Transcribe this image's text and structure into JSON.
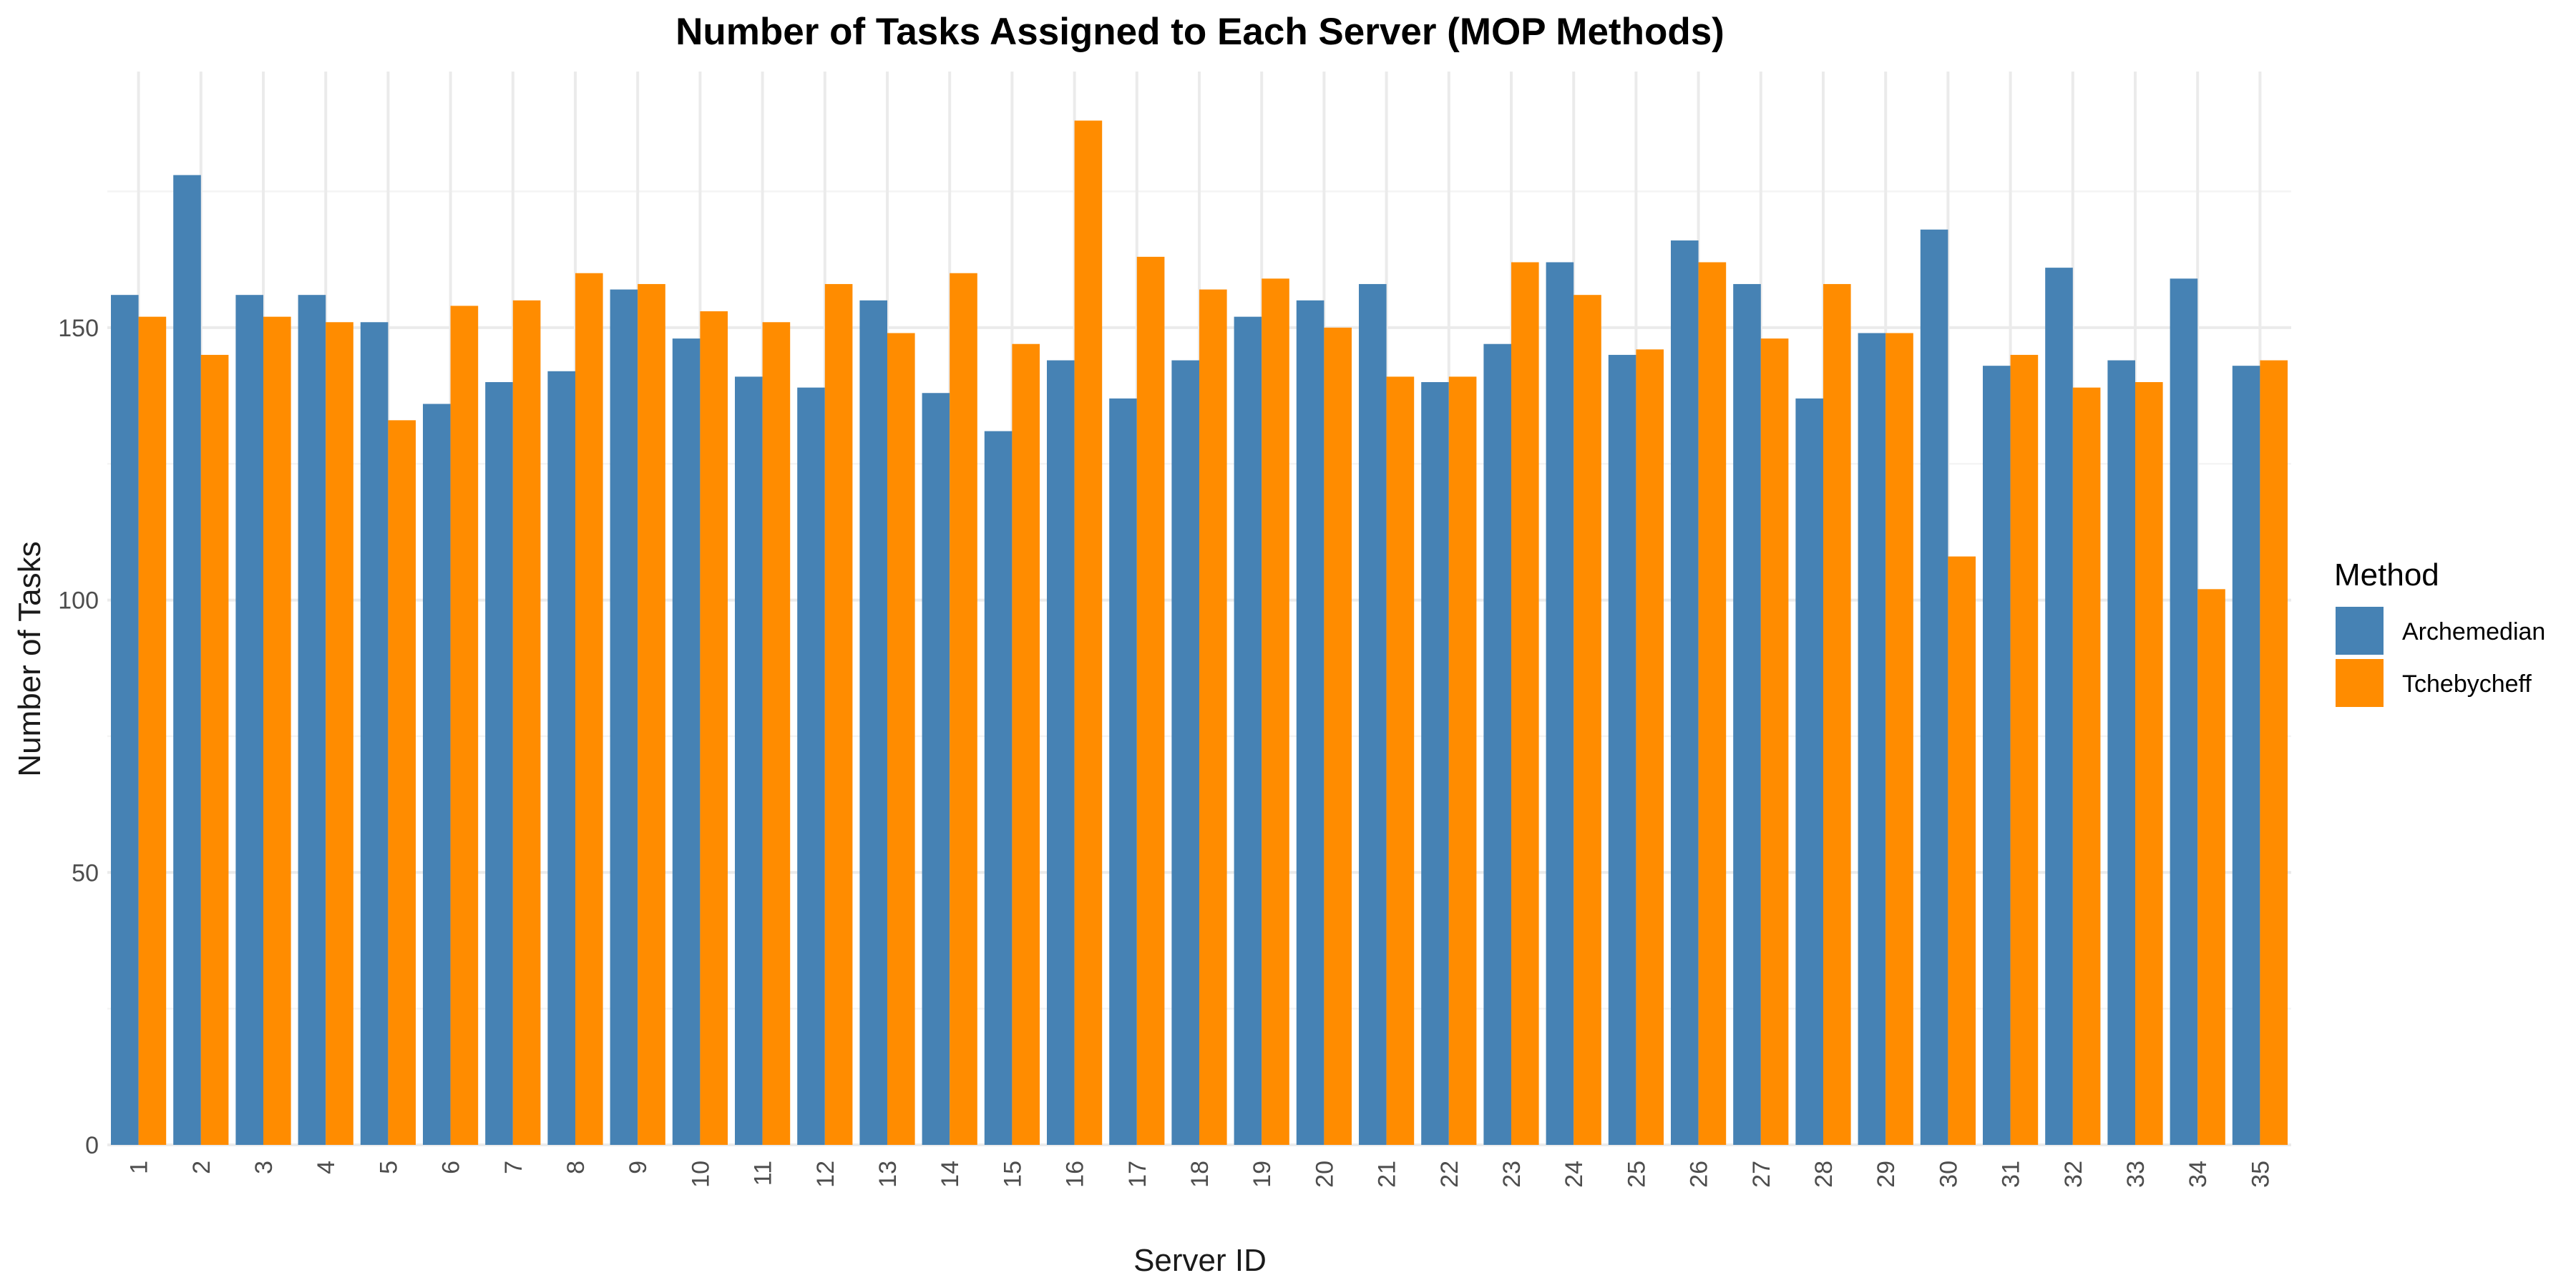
{
  "chart_data": {
    "type": "bar",
    "title": "Number of Tasks Assigned to Each Server (MOP Methods)",
    "xlabel": "Server ID",
    "ylabel": "Number of Tasks",
    "ylim": [
      0,
      197
    ],
    "yticks": [
      "0",
      "50",
      "100",
      "150"
    ],
    "categories": [
      "1",
      "2",
      "3",
      "4",
      "5",
      "6",
      "7",
      "8",
      "9",
      "10",
      "11",
      "12",
      "13",
      "14",
      "15",
      "16",
      "17",
      "18",
      "19",
      "20",
      "21",
      "22",
      "23",
      "24",
      "25",
      "26",
      "27",
      "28",
      "29",
      "30",
      "31",
      "32",
      "33",
      "34",
      "35"
    ],
    "series": [
      {
        "name": "Archemedian",
        "color": "#4682B4",
        "values": [
          156,
          178,
          156,
          156,
          151,
          136,
          140,
          142,
          157,
          148,
          141,
          139,
          155,
          138,
          131,
          144,
          137,
          144,
          152,
          155,
          158,
          140,
          147,
          162,
          145,
          166,
          158,
          137,
          149,
          168,
          143,
          161,
          144,
          159,
          143
        ]
      },
      {
        "name": "Tchebycheff",
        "color": "#FF8C00",
        "values": [
          152,
          145,
          152,
          151,
          133,
          154,
          155,
          160,
          158,
          153,
          151,
          158,
          149,
          160,
          147,
          188,
          163,
          157,
          159,
          150,
          141,
          141,
          162,
          156,
          146,
          162,
          148,
          158,
          149,
          108,
          145,
          139,
          140,
          102,
          144
        ]
      }
    ],
    "legend": {
      "title": "Method",
      "position": "right"
    },
    "grid": true
  }
}
